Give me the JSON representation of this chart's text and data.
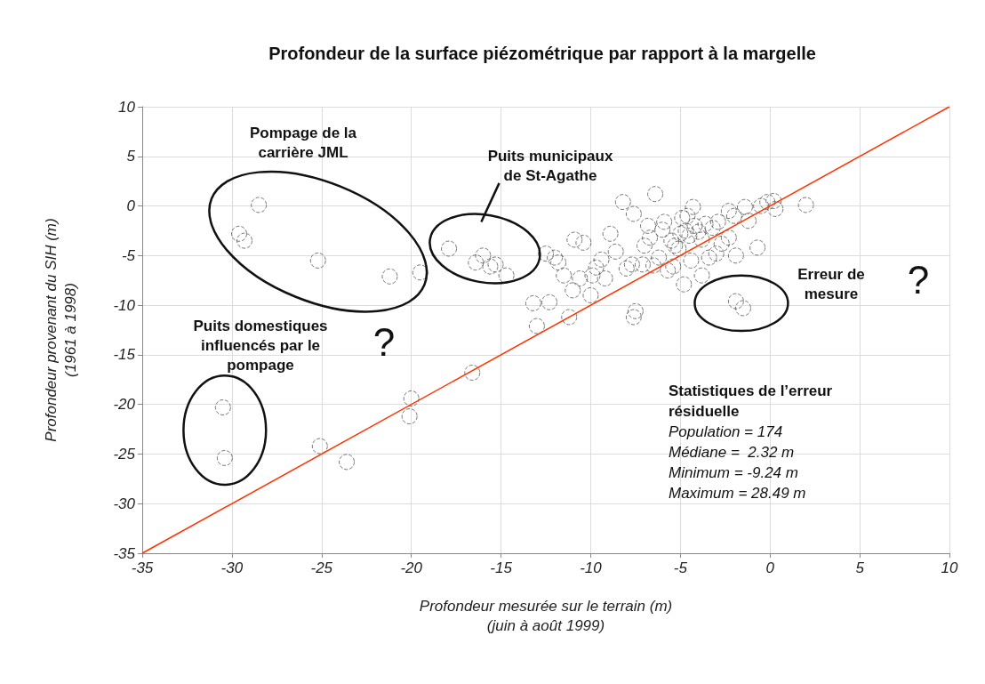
{
  "chart_data": {
    "type": "scatter",
    "title": "Profondeur de la surface piézométrique par rapport à la margelle",
    "xlabel": "Profondeur mesurée sur le terrain (m)\n(juin à août 1999)",
    "ylabel": "Profondeur provenant du SIH (m)\n(1961 à 1998)",
    "xlim": [
      -35,
      10
    ],
    "ylim": [
      -35,
      10
    ],
    "xticks": [
      -35,
      -30,
      -25,
      -20,
      -15,
      -10,
      -5,
      0,
      5,
      10
    ],
    "yticks": [
      -35,
      -30,
      -25,
      -20,
      -15,
      -10,
      -5,
      0,
      5,
      10
    ],
    "grid": true,
    "marker": "circle",
    "series": [
      {
        "color": "#555555",
        "x": [
          -28.5,
          -29.6,
          -29.3,
          -25.2,
          -21.2,
          -19.5,
          -17.9,
          -16.4,
          -16.0,
          -15.3,
          -14.7,
          -15.6,
          -30.5,
          -30.4,
          -20.0,
          -20.1,
          -25.1,
          -23.6,
          -16.6,
          -12.5,
          -12.3,
          -13.0,
          -11.2,
          -10.9,
          -10.4,
          -11.8,
          -11.5,
          -9.9,
          -9.2,
          -8.9,
          -8.6,
          -7.6,
          -6.4,
          -7.6,
          -4.8,
          -9.4,
          -10.6,
          -4.7,
          -7.1,
          -0.15,
          2.0,
          -0.7,
          -3.8,
          -1.9,
          -7.5,
          -1.9,
          -1.5,
          -8.2,
          -5.9,
          -2.9,
          -2.3,
          -3.8,
          -3.4,
          -5.4,
          -1.4,
          -2.3,
          -4.3,
          -6.7,
          -5.1,
          -6.2,
          -7.7,
          -4.5,
          -4.2,
          -5.0,
          -5.5,
          -4.0,
          -3.6,
          -3.2,
          -4.9,
          -5.3,
          -6.0,
          -2.7,
          -2.0,
          -1.2,
          -0.5,
          0.2,
          0.3,
          -6.5,
          -7.0,
          -5.7,
          -4.4,
          -3.0,
          -8.0,
          -9.7,
          -12.0,
          -13.2,
          -11.0,
          -10.0,
          -6.8,
          -4.6
        ],
        "values": [
          0.1,
          -2.8,
          -3.5,
          -5.5,
          -7.1,
          -6.7,
          -4.3,
          -5.7,
          -5.0,
          -5.9,
          -7.0,
          -6.1,
          -20.3,
          -25.4,
          -19.4,
          -21.2,
          -24.2,
          -25.8,
          -16.8,
          -4.8,
          -9.7,
          -12.1,
          -11.2,
          -3.4,
          -3.7,
          -5.7,
          -7.0,
          -7.0,
          -7.3,
          -2.8,
          -4.6,
          -0.8,
          1.2,
          -11.2,
          -7.9,
          -5.4,
          -7.3,
          -2.5,
          -5.9,
          0.4,
          0.1,
          -4.2,
          -7.0,
          -5.0,
          -10.6,
          -9.6,
          -10.3,
          0.4,
          -1.6,
          -1.6,
          -0.5,
          -3.4,
          -5.2,
          -6.1,
          -0.1,
          -3.2,
          -0.1,
          -3.2,
          -4.3,
          -5.2,
          -5.9,
          -3.0,
          -2.0,
          -2.8,
          -3.5,
          -2.6,
          -1.8,
          -2.2,
          -1.2,
          -4.0,
          -2.4,
          -3.8,
          -1.0,
          -1.5,
          0.0,
          0.5,
          -0.3,
          -6.0,
          -4.0,
          -6.5,
          -5.5,
          -4.8,
          -6.3,
          -6.2,
          -5.2,
          -9.8,
          -8.5,
          -9.0,
          -2.0,
          -1.0
        ]
      },
      {
        "type": "line",
        "color": "#ff3300",
        "line_style": "solid",
        "marker": "none",
        "x": [
          -35,
          10
        ],
        "values": [
          -35,
          10
        ]
      }
    ],
    "annotations": [
      "Pompage de la\ncarrière JML",
      "Puits municipaux\nde St-Agathe",
      "Puits domestiques\ninfluencés par le\npompage",
      "Erreur de\nmesure",
      "?",
      "?",
      "Statistiques de l’erreur\nrésiduelle",
      "Population = 174",
      "Médiane =  2.32 m",
      "Minimum = -9.24 m",
      "Maximum = 28.49 m"
    ]
  }
}
